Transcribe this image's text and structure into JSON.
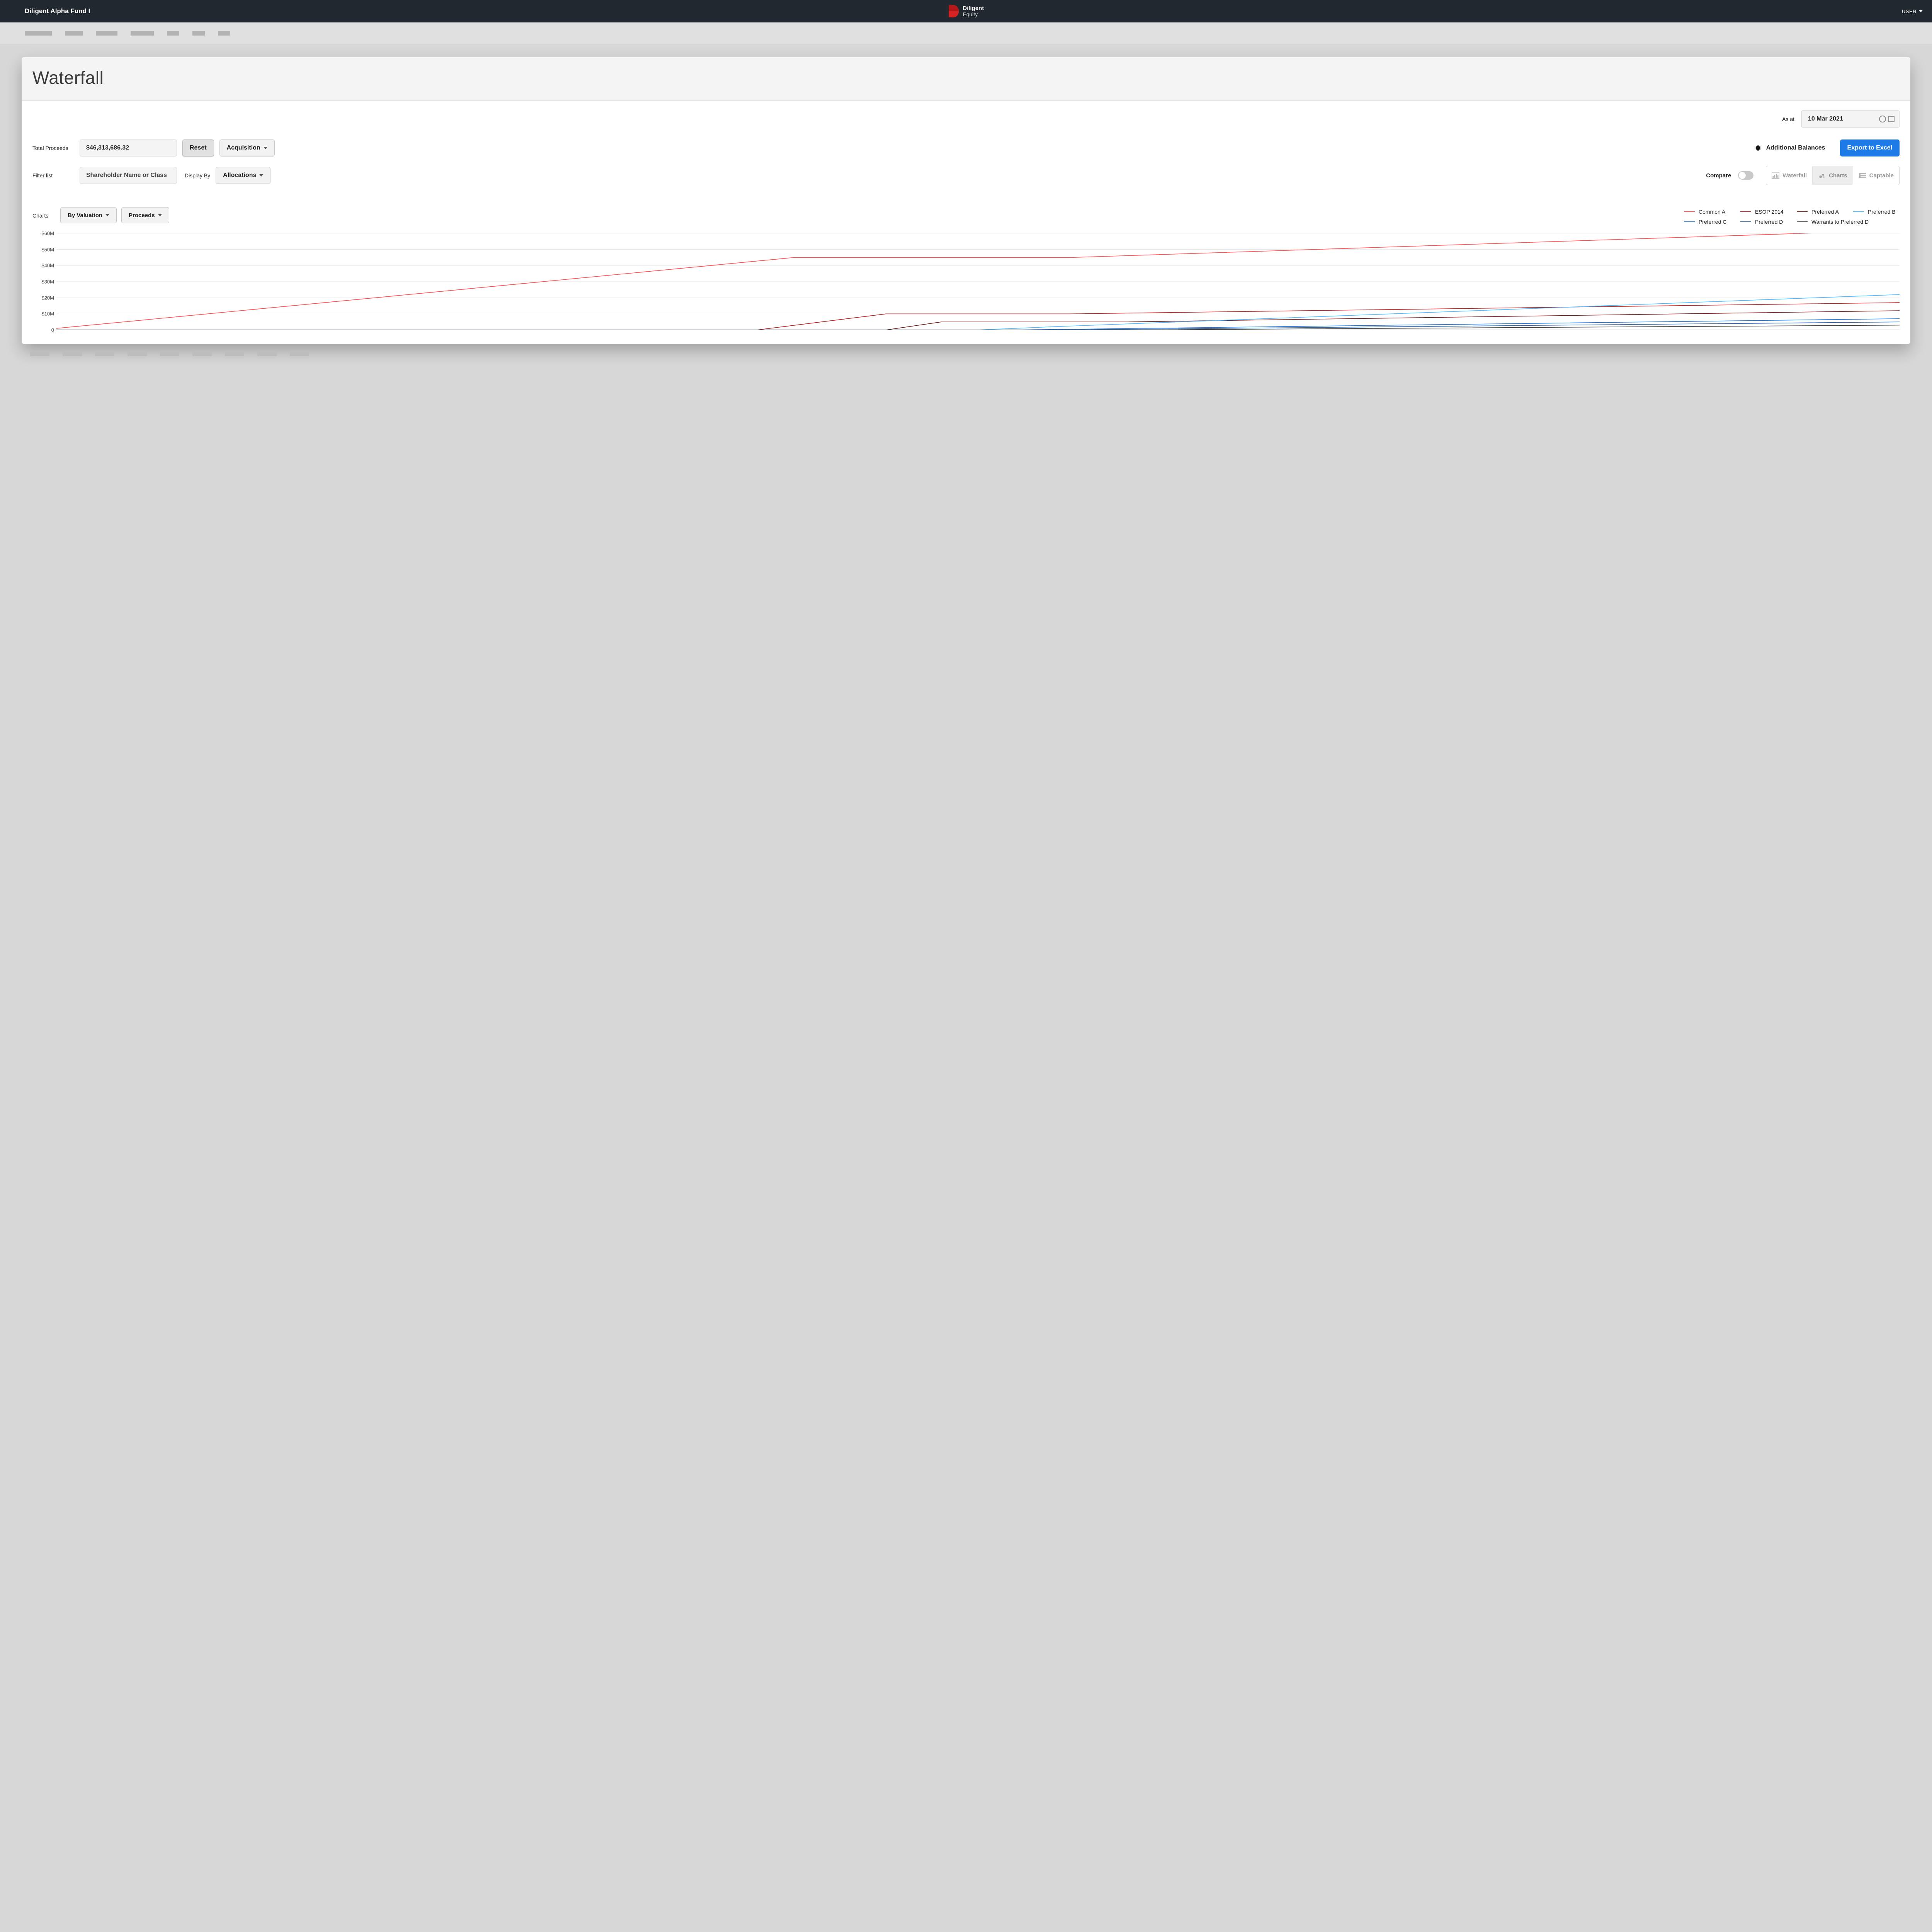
{
  "header": {
    "fund_name": "Diligent Alpha Fund I",
    "brand_line1": "Diligent",
    "brand_line2": "Equity",
    "user_label": "USER"
  },
  "panel": {
    "title": "Waterfall",
    "as_at_label": "As at",
    "as_at_date": "10 Mar 2021"
  },
  "controls": {
    "total_proceeds_label": "Total Proceeds",
    "total_proceeds_value": "$46,313,686.32",
    "reset_label": "Reset",
    "acquisition_label": "Acquisition",
    "additional_balances_label": "Additional Balances",
    "export_label": "Export to Excel",
    "filter_label": "Filter list",
    "filter_placeholder": "Shareholder Name or Class",
    "display_by_label": "Display By",
    "allocations_label": "Allocations",
    "compare_label": "Compare",
    "view_waterfall": "Waterfall",
    "view_charts": "Charts",
    "view_captable": "Captable"
  },
  "chart": {
    "charts_label": "Charts",
    "by_valuation_label": "By Valuation",
    "proceeds_label": "Proceeds",
    "type": "line",
    "y_axis": {
      "min": 0,
      "max": 60,
      "tick_step": 10,
      "ticks": [
        "0",
        "$10M",
        "$20M",
        "$30M",
        "$40M",
        "$50M",
        "$60M"
      ]
    },
    "x_axis": {
      "min": 0,
      "max": 100
    },
    "grid_color": "#e8e8e8",
    "axis_color": "#9c9c9c",
    "background": "#ffffff",
    "line_width": 1.6,
    "series": [
      {
        "name": "Common A",
        "color": "#ff4d4d",
        "points": [
          [
            0,
            1
          ],
          [
            40,
            45
          ],
          [
            55,
            45
          ],
          [
            100,
            62
          ]
        ]
      },
      {
        "name": "ESOP 2014",
        "color": "#b22222",
        "points": [
          [
            0,
            0
          ],
          [
            38,
            0
          ],
          [
            45,
            10
          ],
          [
            55,
            10
          ],
          [
            100,
            17
          ]
        ]
      },
      {
        "name": "Preferred A",
        "color": "#701a1a",
        "points": [
          [
            0,
            0
          ],
          [
            45,
            0
          ],
          [
            48,
            5
          ],
          [
            58,
            5
          ],
          [
            100,
            12
          ]
        ]
      },
      {
        "name": "Preferred B",
        "color": "#49b8ff",
        "points": [
          [
            0,
            0
          ],
          [
            50,
            0
          ],
          [
            54,
            2
          ],
          [
            100,
            22
          ]
        ]
      },
      {
        "name": "Preferred C",
        "color": "#1f6fd1",
        "points": [
          [
            0,
            0
          ],
          [
            52,
            0
          ],
          [
            100,
            7
          ]
        ]
      },
      {
        "name": "Preferred D",
        "color": "#2a5fa0",
        "points": [
          [
            0,
            0
          ],
          [
            54,
            0
          ],
          [
            100,
            5
          ]
        ]
      },
      {
        "name": "Warrants to Preferred D",
        "color": "#3b3b3b",
        "points": [
          [
            0,
            0
          ],
          [
            58,
            0
          ],
          [
            100,
            3
          ]
        ]
      }
    ],
    "legend_rows": [
      [
        "Common A",
        "ESOP 2014",
        "Preferred A",
        "Preferred B"
      ],
      [
        "Preferred C",
        "Preferred D",
        "Warrants to Preferred D"
      ]
    ]
  }
}
